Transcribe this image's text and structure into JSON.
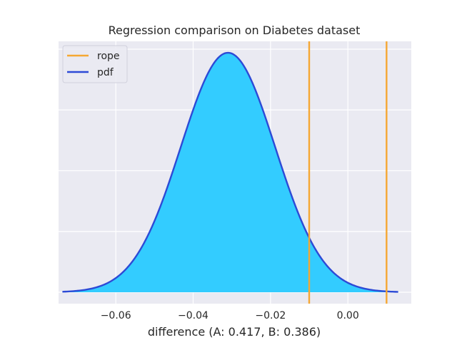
{
  "chart_data": {
    "type": "area",
    "title": "Regression comparison on Diabetes dataset",
    "xlabel": "difference (A: 0.417, B: 0.386)",
    "ylabel": "",
    "xlim": [
      -0.0748,
      0.0164
    ],
    "x_ticks": [
      -0.06,
      -0.04,
      -0.02,
      0.0
    ],
    "x_tick_labels": [
      "−0.06",
      "−0.04",
      "−0.02",
      "0.00"
    ],
    "y_ticks_count": 5,
    "grid": true,
    "legend_position": "top-left",
    "series": [
      {
        "name": "pdf",
        "kind": "normal-density-curve",
        "mean": -0.031,
        "sd": 0.0122,
        "x_range": [
          -0.0738,
          0.013
        ],
        "peak_density": 1.0,
        "line_color": "#2d4ad6",
        "fill_color": "#33ccff"
      }
    ],
    "rope": {
      "name": "rope",
      "bounds": [
        -0.01,
        0.01
      ],
      "color": "#f5a733"
    },
    "legend": [
      {
        "label": "rope",
        "color": "#f5a733"
      },
      {
        "label": "pdf",
        "color": "#2d4ad6"
      }
    ]
  },
  "colors": {
    "plot_background": "#eaeaf2",
    "grid": "#ffffff",
    "axis_text": "#262626"
  }
}
